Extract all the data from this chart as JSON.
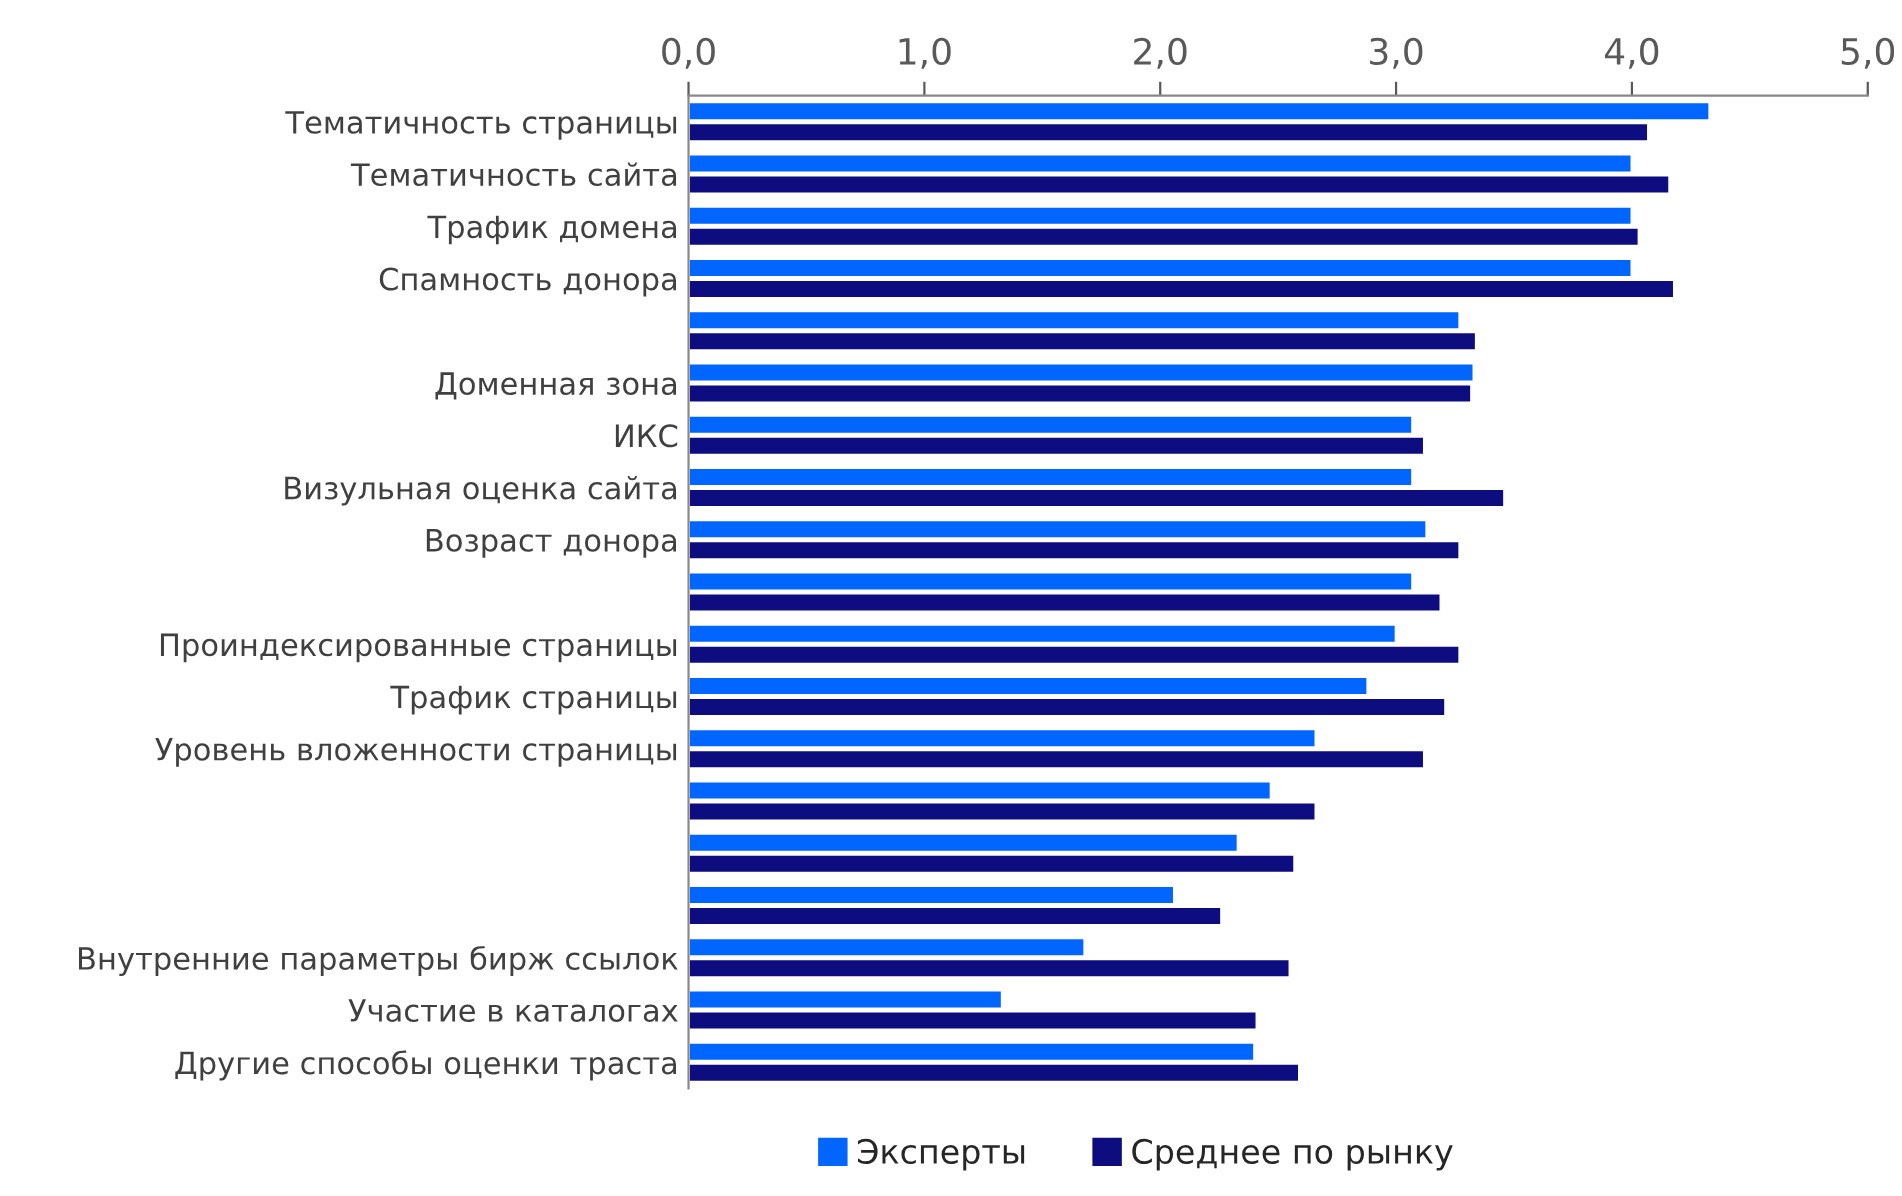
{
  "chart_data": {
    "type": "bar",
    "orientation": "horizontal",
    "categories": [
      "Тематичность страницы",
      "Тематичность сайта",
      "Трафик домена",
      "Спамность донора",
      null,
      "Доменная зона",
      "ИКС",
      "Визульная оценка сайта",
      "Возраст донора",
      null,
      "Проиндексированные страницы",
      "Трафик страницы",
      "Уровень вложенности страницы",
      null,
      null,
      null,
      "Внутренние параметры бирж ссылок",
      "Участие в каталогах",
      "Другие способы оценки траста"
    ],
    "series": [
      {
        "name": "Эксперты",
        "color": "#0066ff",
        "values": [
          4.33,
          4.0,
          4.0,
          4.0,
          3.27,
          3.33,
          3.07,
          3.07,
          3.13,
          3.07,
          3.0,
          2.88,
          2.66,
          2.47,
          2.33,
          2.06,
          1.68,
          1.33,
          2.4
        ]
      },
      {
        "name": "Среднее по рынку",
        "color": "#0d0d80",
        "values": [
          4.07,
          4.16,
          4.03,
          4.18,
          3.34,
          3.32,
          3.12,
          3.46,
          3.27,
          3.19,
          3.27,
          3.21,
          3.12,
          2.66,
          2.57,
          2.26,
          2.55,
          2.41,
          2.59
        ]
      }
    ],
    "xlim": [
      0,
      5
    ],
    "xticks": [
      {
        "value": 0,
        "label": "0,0"
      },
      {
        "value": 1,
        "label": "1,0"
      },
      {
        "value": 2,
        "label": "2,0"
      },
      {
        "value": 3,
        "label": "3,0"
      },
      {
        "value": 4,
        "label": "4,0"
      },
      {
        "value": 5,
        "label": "5,0"
      }
    ],
    "grid": false,
    "legend": "bottom"
  }
}
